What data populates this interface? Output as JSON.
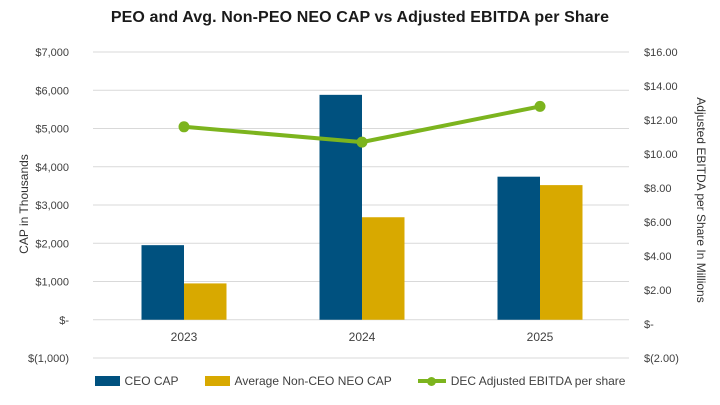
{
  "chart_data": {
    "type": "bar",
    "title": "PEO and Avg. Non-PEO NEO CAP vs Adjusted EBITDA per Share",
    "categories": [
      "2023",
      "2024",
      "2025"
    ],
    "series": [
      {
        "name": "CEO CAP",
        "type": "bar",
        "axis": "left",
        "color": "#00517F",
        "values": [
          1950,
          5880,
          3740
        ]
      },
      {
        "name": "Average Non-CEO NEO CAP",
        "type": "bar",
        "axis": "left",
        "color": "#D8A900",
        "values": [
          950,
          2680,
          3520
        ]
      },
      {
        "name": "DEC Adjusted EBITDA per share",
        "type": "line",
        "axis": "right",
        "color": "#7CB41E",
        "values": [
          11.6,
          10.7,
          12.8
        ]
      }
    ],
    "left_axis": {
      "label": "CAP in Thousands",
      "min": -1000,
      "max": 7000,
      "step": 1000,
      "tick_labels": [
        "$7,000",
        "$6,000",
        "$5,000",
        "$4,000",
        "$3,000",
        "$2,000",
        "$1,000",
        "$-",
        "$(1,000)"
      ]
    },
    "right_axis": {
      "label": "Adjusted EBITDA per Share In Millions",
      "min": -2,
      "max": 16,
      "step": 2,
      "tick_labels": [
        "$16.00",
        "$14.00",
        "$12.00",
        "$10.00",
        "$8.00",
        "$6.00",
        "$4.00",
        "$2.00",
        "$-",
        "$(2.00)"
      ]
    },
    "grid": true,
    "gridline_color": "#D9D9D9",
    "legend_position": "bottom"
  }
}
